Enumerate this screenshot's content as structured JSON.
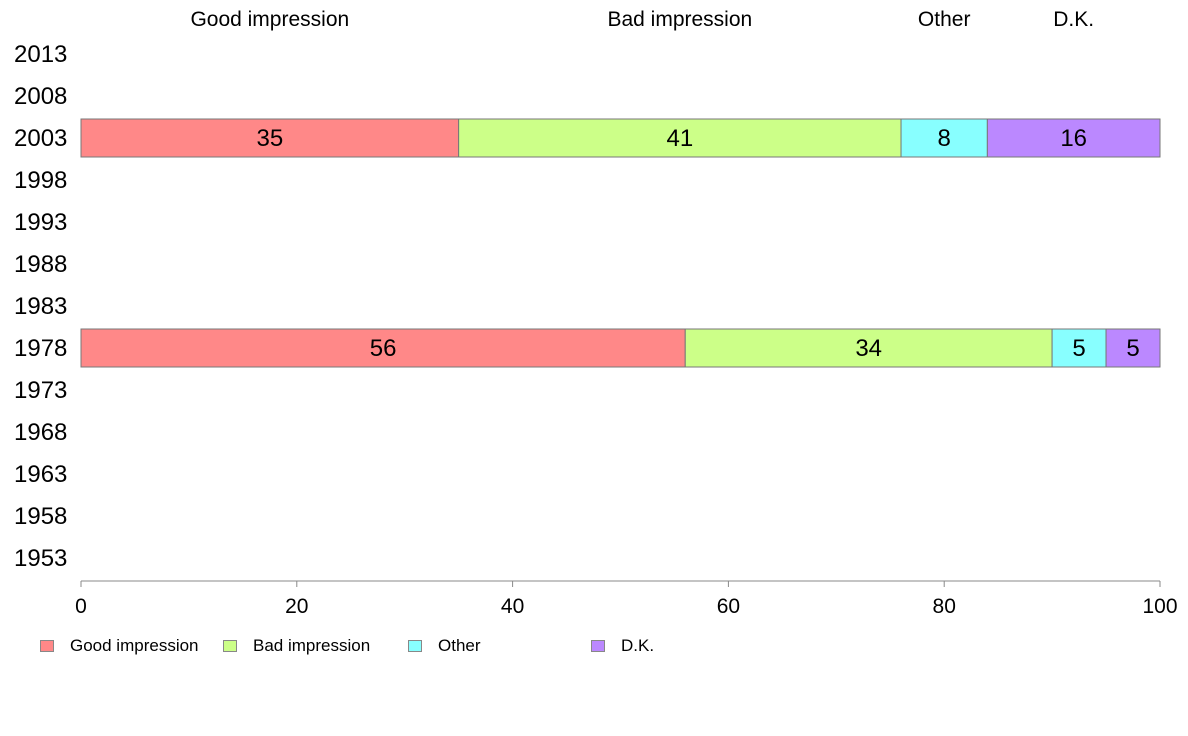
{
  "chart_data": {
    "type": "bar",
    "orientation": "horizontal",
    "stacked": true,
    "categories": [
      "2013",
      "2008",
      "2003",
      "1998",
      "1993",
      "1988",
      "1983",
      "1978",
      "1973",
      "1968",
      "1963",
      "1958",
      "1953"
    ],
    "series": [
      {
        "name": "Good impression",
        "color": "#ff8888",
        "values": [
          null,
          null,
          35,
          null,
          null,
          null,
          null,
          56,
          null,
          null,
          null,
          null,
          null
        ]
      },
      {
        "name": "Bad impression",
        "color": "#ccff88",
        "values": [
          null,
          null,
          41,
          null,
          null,
          null,
          null,
          34,
          null,
          null,
          null,
          null,
          null
        ]
      },
      {
        "name": "Other",
        "color": "#88ffff",
        "values": [
          null,
          null,
          8,
          null,
          null,
          null,
          null,
          5,
          null,
          null,
          null,
          null,
          null
        ]
      },
      {
        "name": "D.K.",
        "color": "#bb88ff",
        "values": [
          null,
          null,
          16,
          null,
          null,
          null,
          null,
          5,
          null,
          null,
          null,
          null,
          null
        ]
      }
    ],
    "x_ticks": [
      "0",
      "20",
      "40",
      "60",
      "80",
      "100"
    ],
    "xlim": [
      0,
      100
    ],
    "grid": false,
    "legend_position": "bottom-left"
  }
}
